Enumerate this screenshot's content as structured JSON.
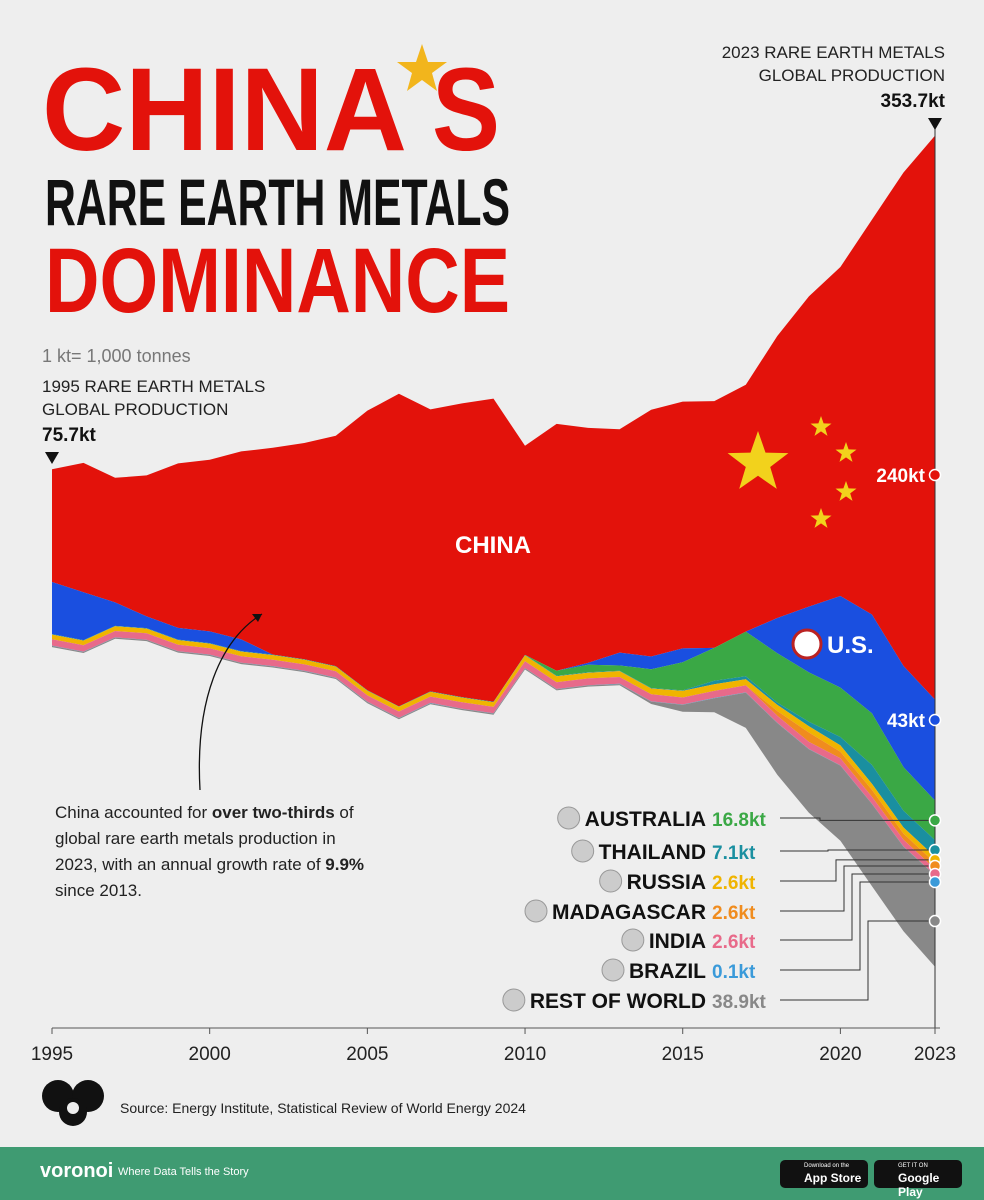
{
  "chart_data": {
    "type": "stacked-stream",
    "title_parts": [
      "CHINA",
      "S",
      "RARE EARTH METALS",
      "DOMINANCE"
    ],
    "unit_note": "1 kt= 1,000 tonnes",
    "annotations": [
      {
        "lines": [
          "1995 RARE EARTH METALS",
          "GLOBAL PRODUCTION"
        ],
        "label": "75.7kt",
        "value": 75.7,
        "x": 1995
      },
      {
        "lines": [
          "2023 RARE EARTH METALS",
          "GLOBAL PRODUCTION"
        ],
        "label": "353.7kt",
        "value": 353.7,
        "x": 2023
      }
    ],
    "note_runs": [
      "China accounted for ",
      "over two-thirds",
      " of global rare earth metals production in 2023, with an annual growth rate of ",
      "9.9%",
      " since 2013."
    ],
    "x": [
      1995,
      1996,
      1997,
      1998,
      1999,
      2000,
      2001,
      2002,
      2003,
      2004,
      2005,
      2006,
      2007,
      2008,
      2009,
      2010,
      2011,
      2012,
      2013,
      2014,
      2015,
      2016,
      2017,
      2018,
      2019,
      2020,
      2021,
      2022,
      2023
    ],
    "xlim": [
      1995,
      2023
    ],
    "xticks": [
      1995,
      2000,
      2005,
      2010,
      2015,
      2020,
      2023
    ],
    "series": [
      {
        "name": "CHINA",
        "color": "#e3120b",
        "values": [
          48,
          55,
          53,
          60,
          70,
          73,
          80,
          88,
          92,
          98,
          119,
          133,
          120,
          125,
          129,
          89,
          105,
          100,
          95,
          105,
          105,
          105,
          105,
          120,
          132,
          140,
          168,
          210,
          240
        ],
        "value_labels": [
          null,
          null,
          null,
          null,
          null,
          null,
          null,
          null,
          null,
          null,
          null,
          null,
          null,
          null,
          null,
          null,
          null,
          null,
          null,
          null,
          null,
          null,
          null,
          null,
          null,
          null,
          null,
          null,
          "240kt"
        ]
      },
      {
        "name": "U.S.",
        "color": "#1a4fe0",
        "values": [
          22.2,
          20.4,
          10,
          5,
          5,
          5,
          5,
          0,
          0,
          0,
          0,
          0,
          0,
          0,
          0,
          0,
          0,
          0.8,
          5.5,
          5.4,
          5.9,
          0,
          0,
          15,
          28,
          39,
          42,
          43,
          43
        ],
        "value_labels": [
          null,
          null,
          null,
          null,
          null,
          null,
          null,
          null,
          null,
          null,
          null,
          null,
          null,
          null,
          null,
          null,
          null,
          null,
          null,
          null,
          null,
          null,
          null,
          null,
          null,
          null,
          null,
          null,
          "43kt"
        ]
      },
      {
        "name": "AUSTRALIA",
        "color": "#3aa845",
        "values": [
          0,
          0,
          0,
          0,
          0,
          0,
          0,
          0,
          0,
          0,
          0,
          0,
          0,
          0,
          0,
          0,
          2.2,
          3.2,
          2.2,
          8,
          12,
          14,
          19,
          21,
          21,
          21,
          22,
          18.6,
          16.8
        ],
        "value_labels": [
          null,
          null,
          null,
          null,
          null,
          null,
          null,
          null,
          null,
          null,
          null,
          null,
          null,
          null,
          null,
          null,
          null,
          null,
          null,
          null,
          null,
          null,
          null,
          null,
          null,
          null,
          null,
          null,
          "16.8kt"
        ]
      },
      {
        "name": "THAILAND",
        "color": "#1a8fa0",
        "values": [
          0.2,
          0.2,
          0.2,
          0.2,
          0.2,
          0.2,
          0.2,
          0.2,
          0.2,
          0.2,
          0.2,
          0.2,
          0.2,
          0.2,
          0.2,
          0.2,
          0.2,
          0.2,
          0.2,
          0.2,
          0.2,
          1.5,
          1.3,
          1,
          1.9,
          3.6,
          8,
          7.1,
          7.1
        ],
        "value_labels": [
          null,
          null,
          null,
          null,
          null,
          null,
          null,
          null,
          null,
          null,
          null,
          null,
          null,
          null,
          null,
          null,
          null,
          null,
          null,
          null,
          null,
          null,
          null,
          null,
          null,
          null,
          null,
          null,
          "7.1kt"
        ]
      },
      {
        "name": "RUSSIA",
        "color": "#f0b400",
        "values": [
          2,
          2,
          2,
          2,
          2,
          2,
          2,
          2,
          2,
          2,
          2,
          2,
          2,
          2,
          2,
          2.5,
          2.5,
          2.4,
          2.5,
          2.5,
          2.8,
          2.8,
          2.6,
          2.6,
          2.7,
          2.7,
          2.6,
          2.6,
          2.6
        ],
        "value_labels": [
          null,
          null,
          null,
          null,
          null,
          null,
          null,
          null,
          null,
          null,
          null,
          null,
          null,
          null,
          null,
          null,
          null,
          null,
          null,
          null,
          null,
          null,
          null,
          null,
          null,
          null,
          null,
          null,
          "2.6kt"
        ]
      },
      {
        "name": "MADAGASCAR",
        "color": "#f08c1e",
        "values": [
          0,
          0,
          0,
          0,
          0,
          0,
          0,
          0,
          0,
          0,
          0,
          0,
          0,
          0,
          0,
          0,
          0,
          0,
          0,
          0,
          0,
          0,
          0,
          2,
          4,
          2.8,
          3,
          2.6,
          2.6
        ],
        "value_labels": [
          null,
          null,
          null,
          null,
          null,
          null,
          null,
          null,
          null,
          null,
          null,
          null,
          null,
          null,
          null,
          null,
          null,
          null,
          null,
          null,
          null,
          null,
          null,
          null,
          null,
          null,
          null,
          null,
          "2.6kt"
        ]
      },
      {
        "name": "INDIA",
        "color": "#e86a8a",
        "values": [
          2.7,
          2.7,
          2.7,
          2.7,
          2.7,
          2.7,
          2.7,
          2.7,
          2.7,
          2.7,
          2.7,
          2.7,
          2.7,
          2.7,
          2.7,
          2.9,
          2.9,
          2.9,
          2.9,
          3,
          3,
          3,
          3,
          3,
          3,
          3,
          2.9,
          2.9,
          2.6
        ],
        "value_labels": [
          null,
          null,
          null,
          null,
          null,
          null,
          null,
          null,
          null,
          null,
          null,
          null,
          null,
          null,
          null,
          null,
          null,
          null,
          null,
          null,
          null,
          null,
          null,
          null,
          null,
          null,
          null,
          null,
          "2.6kt"
        ]
      },
      {
        "name": "BRAZIL",
        "color": "#3a9ad9",
        "values": [
          0.1,
          0.1,
          0.1,
          0.1,
          0.1,
          0.1,
          0.1,
          0.1,
          0.1,
          0.1,
          0.1,
          0.1,
          0.1,
          0.1,
          0.1,
          0.1,
          0.1,
          0.1,
          0.1,
          0.1,
          0.1,
          0.1,
          0.1,
          0.1,
          0.1,
          0.1,
          0.1,
          0.1,
          0.1
        ],
        "value_labels": [
          null,
          null,
          null,
          null,
          null,
          null,
          null,
          null,
          null,
          null,
          null,
          null,
          null,
          null,
          null,
          null,
          null,
          null,
          null,
          null,
          null,
          null,
          null,
          null,
          null,
          null,
          null,
          null,
          "0.1kt"
        ]
      },
      {
        "name": "REST OF WORLD",
        "color": "#888888",
        "values": [
          0.5,
          0.5,
          0.5,
          0.5,
          0.5,
          0.5,
          0.5,
          0.5,
          0.5,
          0.5,
          0.5,
          0.5,
          0.5,
          0.5,
          0.5,
          0.5,
          0.5,
          0.5,
          0.5,
          1,
          3,
          6,
          15,
          22,
          27,
          32,
          35,
          36,
          38.9
        ],
        "value_labels": [
          null,
          null,
          null,
          null,
          null,
          null,
          null,
          null,
          null,
          null,
          null,
          null,
          null,
          null,
          null,
          null,
          null,
          null,
          null,
          null,
          null,
          null,
          null,
          null,
          null,
          null,
          null,
          null,
          "38.9kt"
        ]
      }
    ],
    "source": "Source: Energy Institute, Statistical Review of World Energy 2024",
    "brand": "voronoi",
    "tagline": "Where Data Tells the Story",
    "store_buttons": [
      {
        "small": "Download on the",
        "big": "App Store"
      },
      {
        "small": "GET IT ON",
        "big": "Google Play"
      }
    ]
  }
}
